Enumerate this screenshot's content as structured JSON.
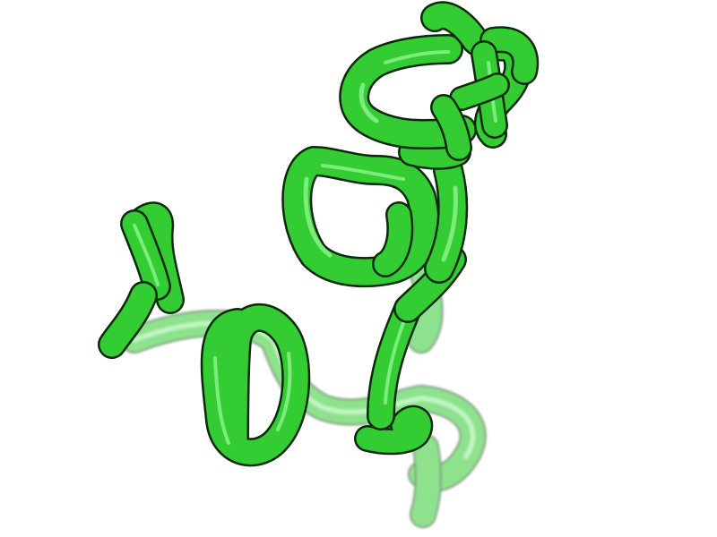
{
  "scene": {
    "subject": "protein-backbone-cartoon",
    "colors": {
      "background": "#ffffff",
      "tube": "#33cc33",
      "tube_highlight": "#8ff58f",
      "tube_outline": "#0a2a0a"
    }
  }
}
